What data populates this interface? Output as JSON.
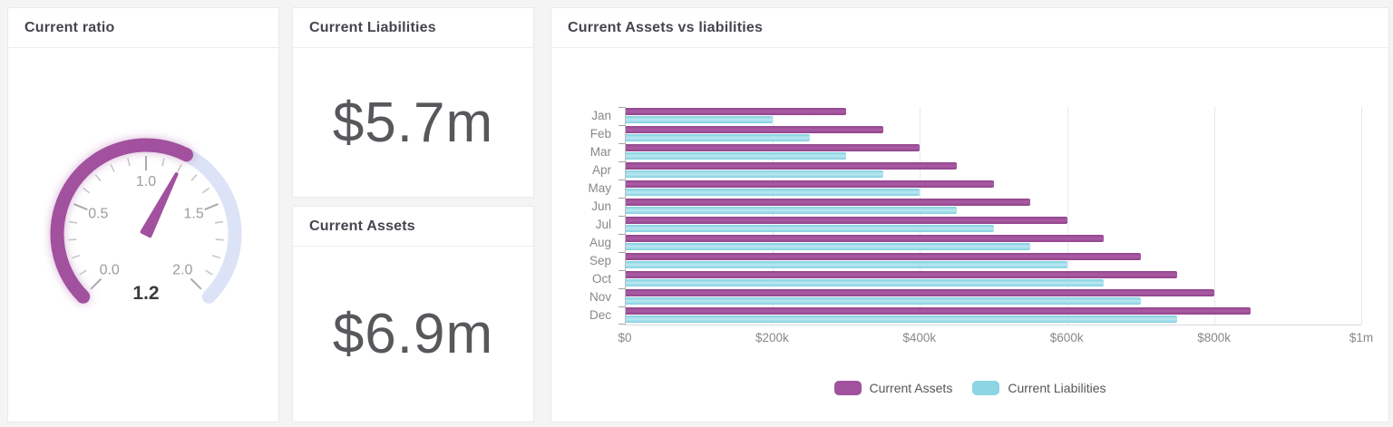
{
  "cards": {
    "gauge_card": {
      "title": "Current ratio"
    },
    "liabilities_card": {
      "title": "Current Liabilities",
      "value": "$5.7m"
    },
    "assets_card": {
      "title": "Current Assets",
      "value": "$6.9m"
    },
    "chart_card": {
      "title": "Current Assets vs liabilities"
    }
  },
  "gauge": {
    "min": 0,
    "max": 2,
    "value": 1.2,
    "value_label": "1.2",
    "major_tick_labels": [
      "0.0",
      "0.5",
      "1.0",
      "1.5",
      "2.0"
    ],
    "minor_tick_step": 0.1,
    "major_tick_step": 0.5,
    "start_angle_deg": 225,
    "sweep_deg": 270,
    "colors": {
      "fill": "#a1519d",
      "track": "#dde3f6",
      "needle": "#a1519d",
      "minor_tick": "#c6c6cb",
      "major_tick": "#ababaf",
      "label_text": "#9b9ca0",
      "value_text": "#3b3b3d"
    }
  },
  "chart_data": {
    "type": "bar",
    "orientation": "horizontal",
    "title": "Current Assets vs liabilities",
    "categories": [
      "Jan",
      "Feb",
      "Mar",
      "Apr",
      "May",
      "Jun",
      "Jul",
      "Aug",
      "Sep",
      "Oct",
      "Nov",
      "Dec"
    ],
    "series": [
      {
        "name": "Current Assets",
        "color": "#a1519d",
        "values": [
          300000,
          350000,
          400000,
          450000,
          500000,
          550000,
          600000,
          650000,
          700000,
          750000,
          800000,
          850000
        ]
      },
      {
        "name": "Current Liabilities",
        "color": "#8dd4e4",
        "values": [
          200000,
          250000,
          300000,
          350000,
          400000,
          450000,
          500000,
          550000,
          600000,
          650000,
          700000,
          750000
        ]
      }
    ],
    "x_axis": {
      "min": 0,
      "max": 1000000,
      "tick_step": 200000,
      "tick_labels": [
        "$0",
        "$200k",
        "$400k",
        "$600k",
        "$800k",
        "$1m"
      ]
    },
    "grid": true,
    "legend_position": "bottom"
  }
}
